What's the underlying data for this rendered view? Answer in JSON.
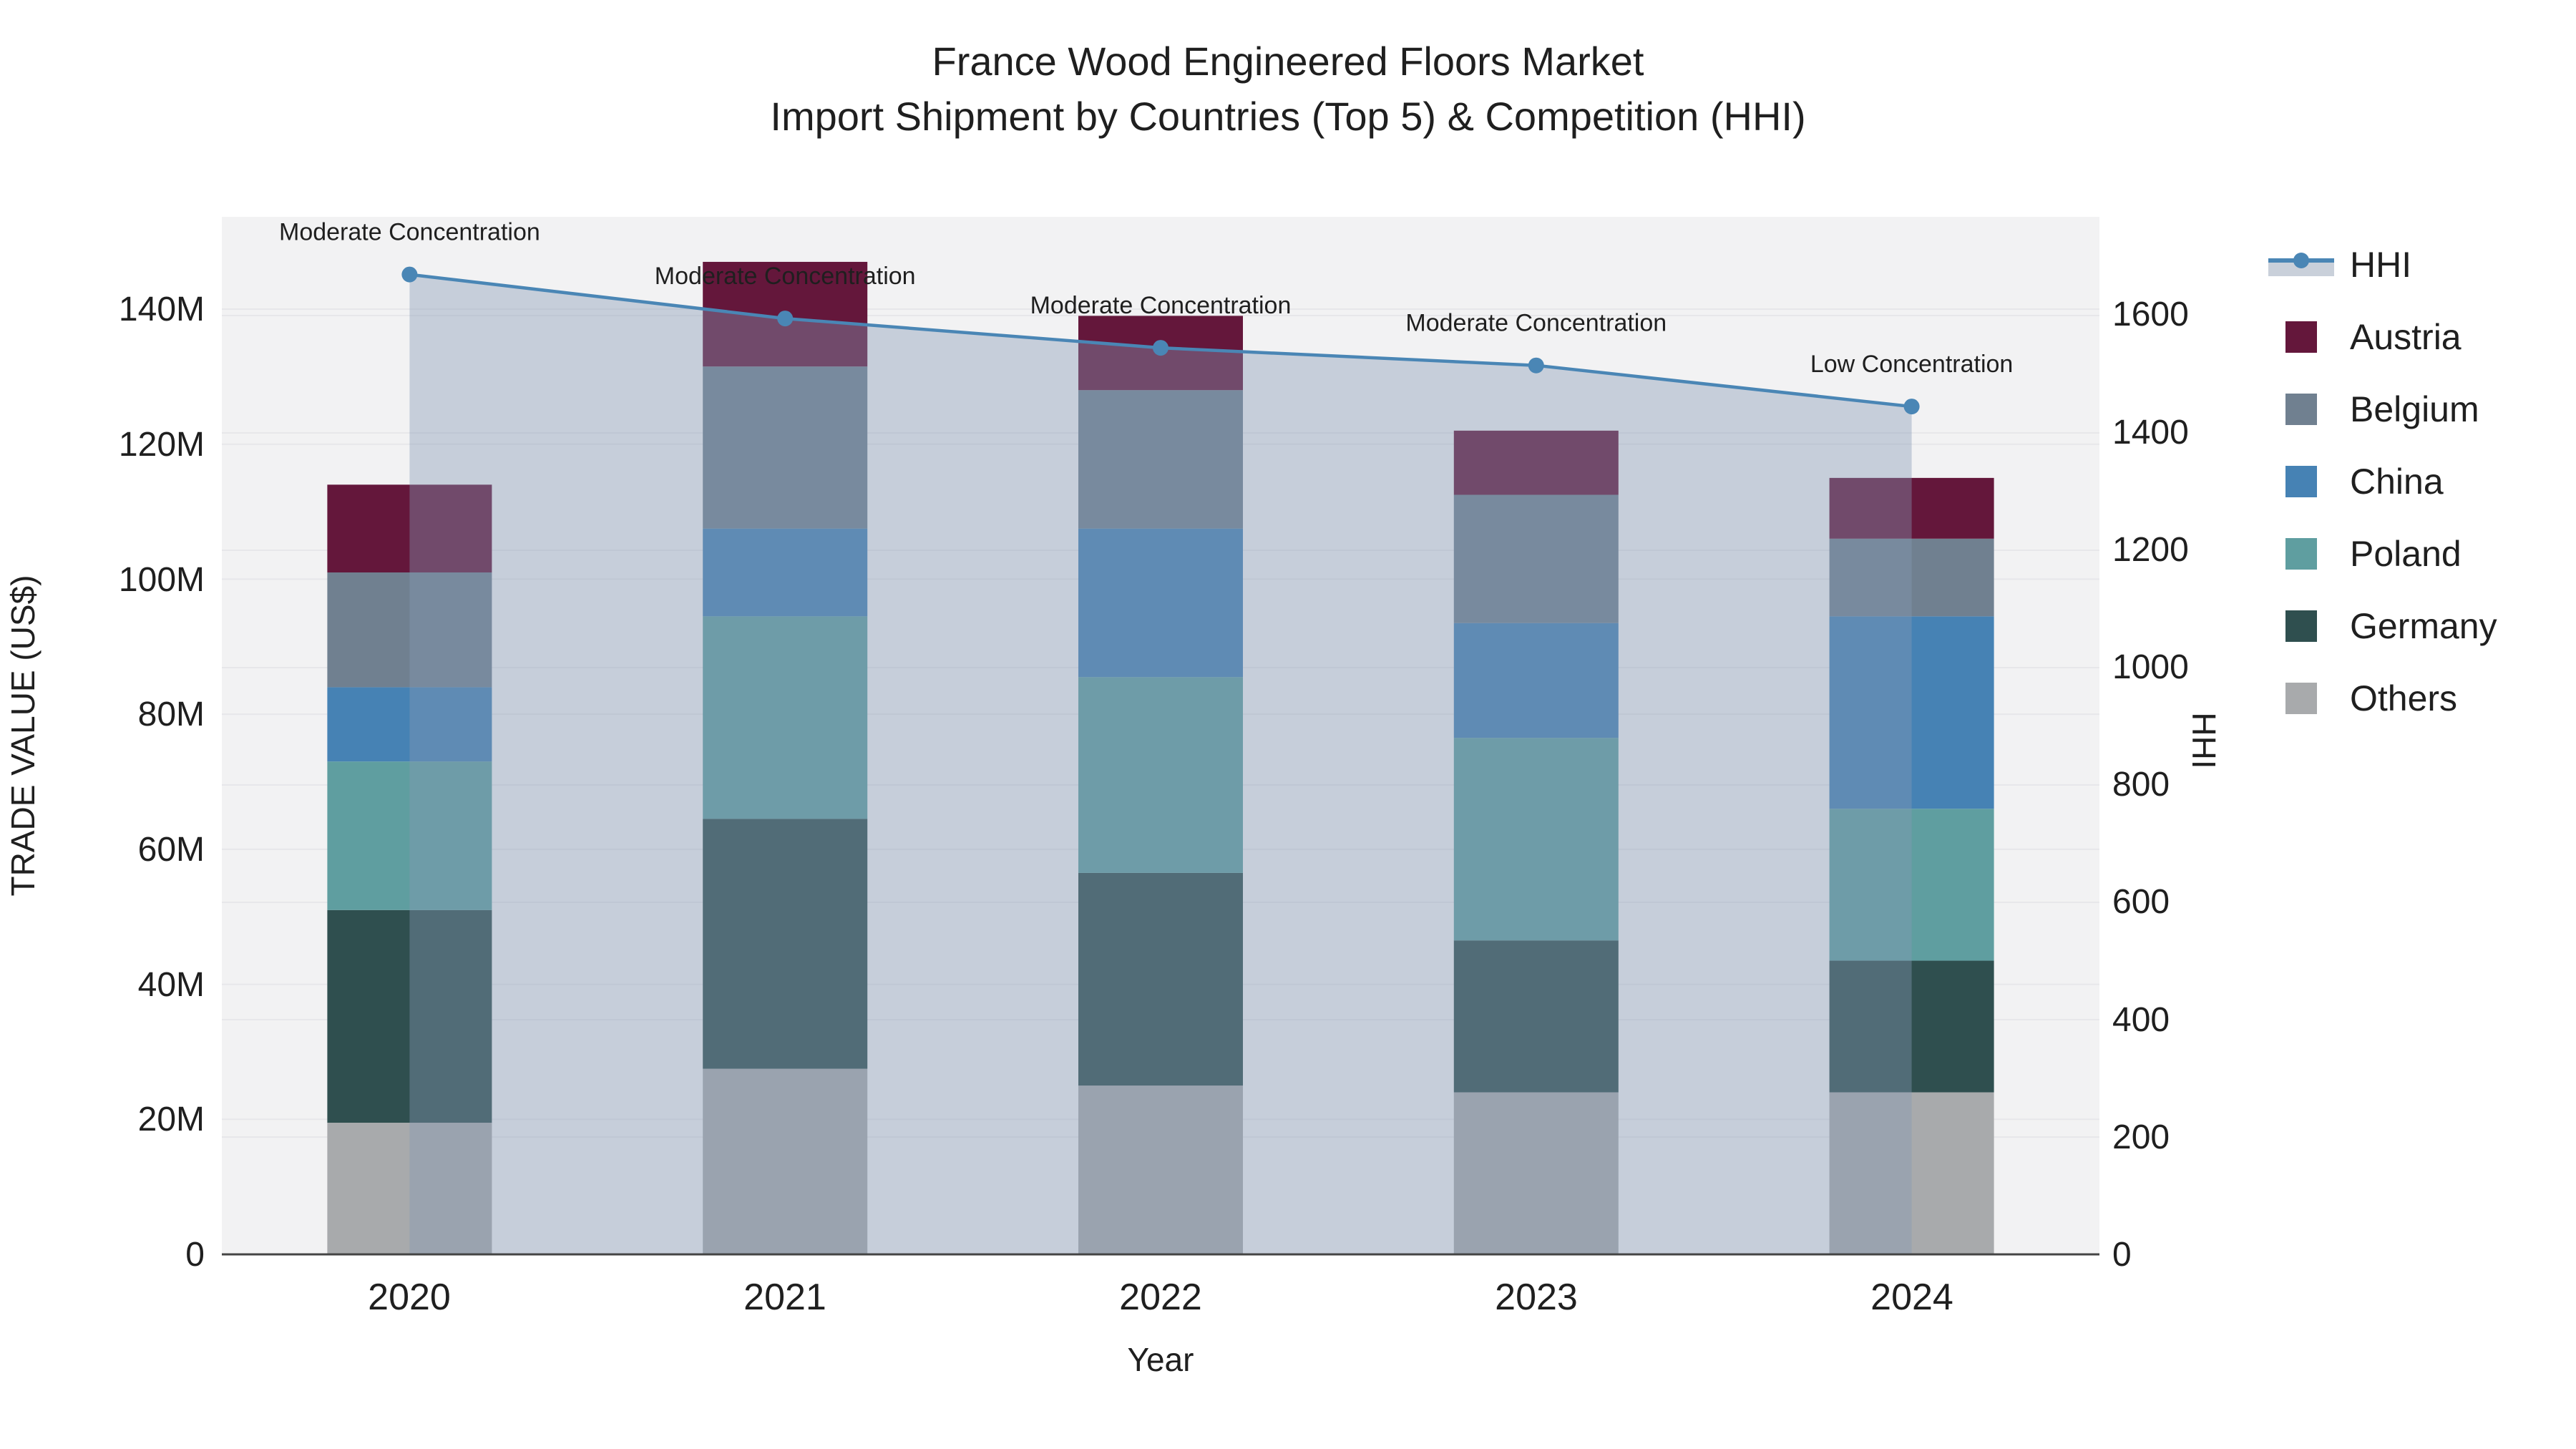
{
  "title": {
    "line1": "France Wood Engineered Floors Market",
    "line2": "Import Shipment by Countries (Top 5) & Competition (HHI)"
  },
  "axes": {
    "x": {
      "title": "Year",
      "categories": [
        "2020",
        "2021",
        "2022",
        "2023",
        "2024"
      ]
    },
    "y_left": {
      "title": "TRADE VALUE (US$)",
      "tick_labels": [
        "0",
        "20M",
        "40M",
        "60M",
        "80M",
        "100M",
        "120M",
        "140M"
      ],
      "tick_values": [
        0,
        20,
        40,
        60,
        80,
        100,
        120,
        140
      ]
    },
    "y_right": {
      "title": "HHI",
      "tick_labels": [
        "0",
        "200",
        "400",
        "600",
        "800",
        "1000",
        "1200",
        "1400",
        "1600"
      ],
      "tick_values": [
        0,
        200,
        400,
        600,
        800,
        1000,
        1200,
        1400,
        1600
      ]
    }
  },
  "legend": [
    {
      "label": "HHI",
      "color": "#4a86b5",
      "type": "line"
    },
    {
      "label": "Austria",
      "color": "#64173b",
      "type": "box"
    },
    {
      "label": "Belgium",
      "color": "#708090",
      "type": "box"
    },
    {
      "label": "China",
      "color": "#4682b4",
      "type": "box"
    },
    {
      "label": "Poland",
      "color": "#5f9ea0",
      "type": "box"
    },
    {
      "label": "Germany",
      "color": "#2f4f4f",
      "type": "box"
    },
    {
      "label": "Others",
      "color": "#a8aaac",
      "type": "box"
    }
  ],
  "chart_data": {
    "type": "bar",
    "subtype": "stacked-bar-with-line",
    "title": "France Wood Engineered Floors Market — Import Shipment by Countries (Top 5) & Competition (HHI)",
    "xlabel": "Year",
    "ylabel_left": "TRADE VALUE (US$)",
    "ylabel_right": "HHI",
    "categories": [
      "2020",
      "2021",
      "2022",
      "2023",
      "2024"
    ],
    "units": "million US$",
    "stack_order_bottom_to_top": [
      "Others",
      "Germany",
      "Poland",
      "China",
      "Belgium",
      "Austria"
    ],
    "bar_series": [
      {
        "name": "Austria",
        "color": "#64173b",
        "values": [
          13,
          15.5,
          11,
          9.5,
          9
        ]
      },
      {
        "name": "Belgium",
        "color": "#708090",
        "values": [
          17,
          24,
          20.5,
          19,
          11.5
        ]
      },
      {
        "name": "China",
        "color": "#4682b4",
        "values": [
          11,
          13,
          22,
          17,
          28.5
        ]
      },
      {
        "name": "Poland",
        "color": "#5f9ea0",
        "values": [
          22,
          30,
          29,
          30,
          22.5
        ]
      },
      {
        "name": "Germany",
        "color": "#2f4f4f",
        "values": [
          31.5,
          37,
          31.5,
          22.5,
          19.5
        ]
      },
      {
        "name": "Others",
        "color": "#a8aaac",
        "values": [
          19.5,
          27.5,
          25,
          24,
          24
        ]
      }
    ],
    "bar_totals": [
      114,
      147,
      139,
      122,
      115
    ],
    "line_series": {
      "name": "HHI",
      "axis": "right",
      "color": "#4a86b5",
      "fill_color": "rgba(133,152,180,0.40)",
      "values": [
        1670,
        1595,
        1545,
        1515,
        1445
      ]
    },
    "annotations": [
      "Moderate Concentration",
      "Moderate Concentration",
      "Moderate Concentration",
      "Moderate Concentration",
      "Low Concentration"
    ],
    "ylim_left": [
      0,
      153.8
    ],
    "ylim_right": [
      0,
      1768
    ],
    "grid": true,
    "legend_position": "right"
  },
  "colors": {
    "plot_bg": "#f2f2f3",
    "paper_bg": "#ffffff",
    "grid": "#e7e7ea",
    "axis_line": "#444444",
    "text": "#1f1f1f",
    "hhi_line": "#4a86b5",
    "hhi_fill": "rgba(133,152,180,0.40)",
    "hhi_legend_fill": "#c9d0da"
  }
}
